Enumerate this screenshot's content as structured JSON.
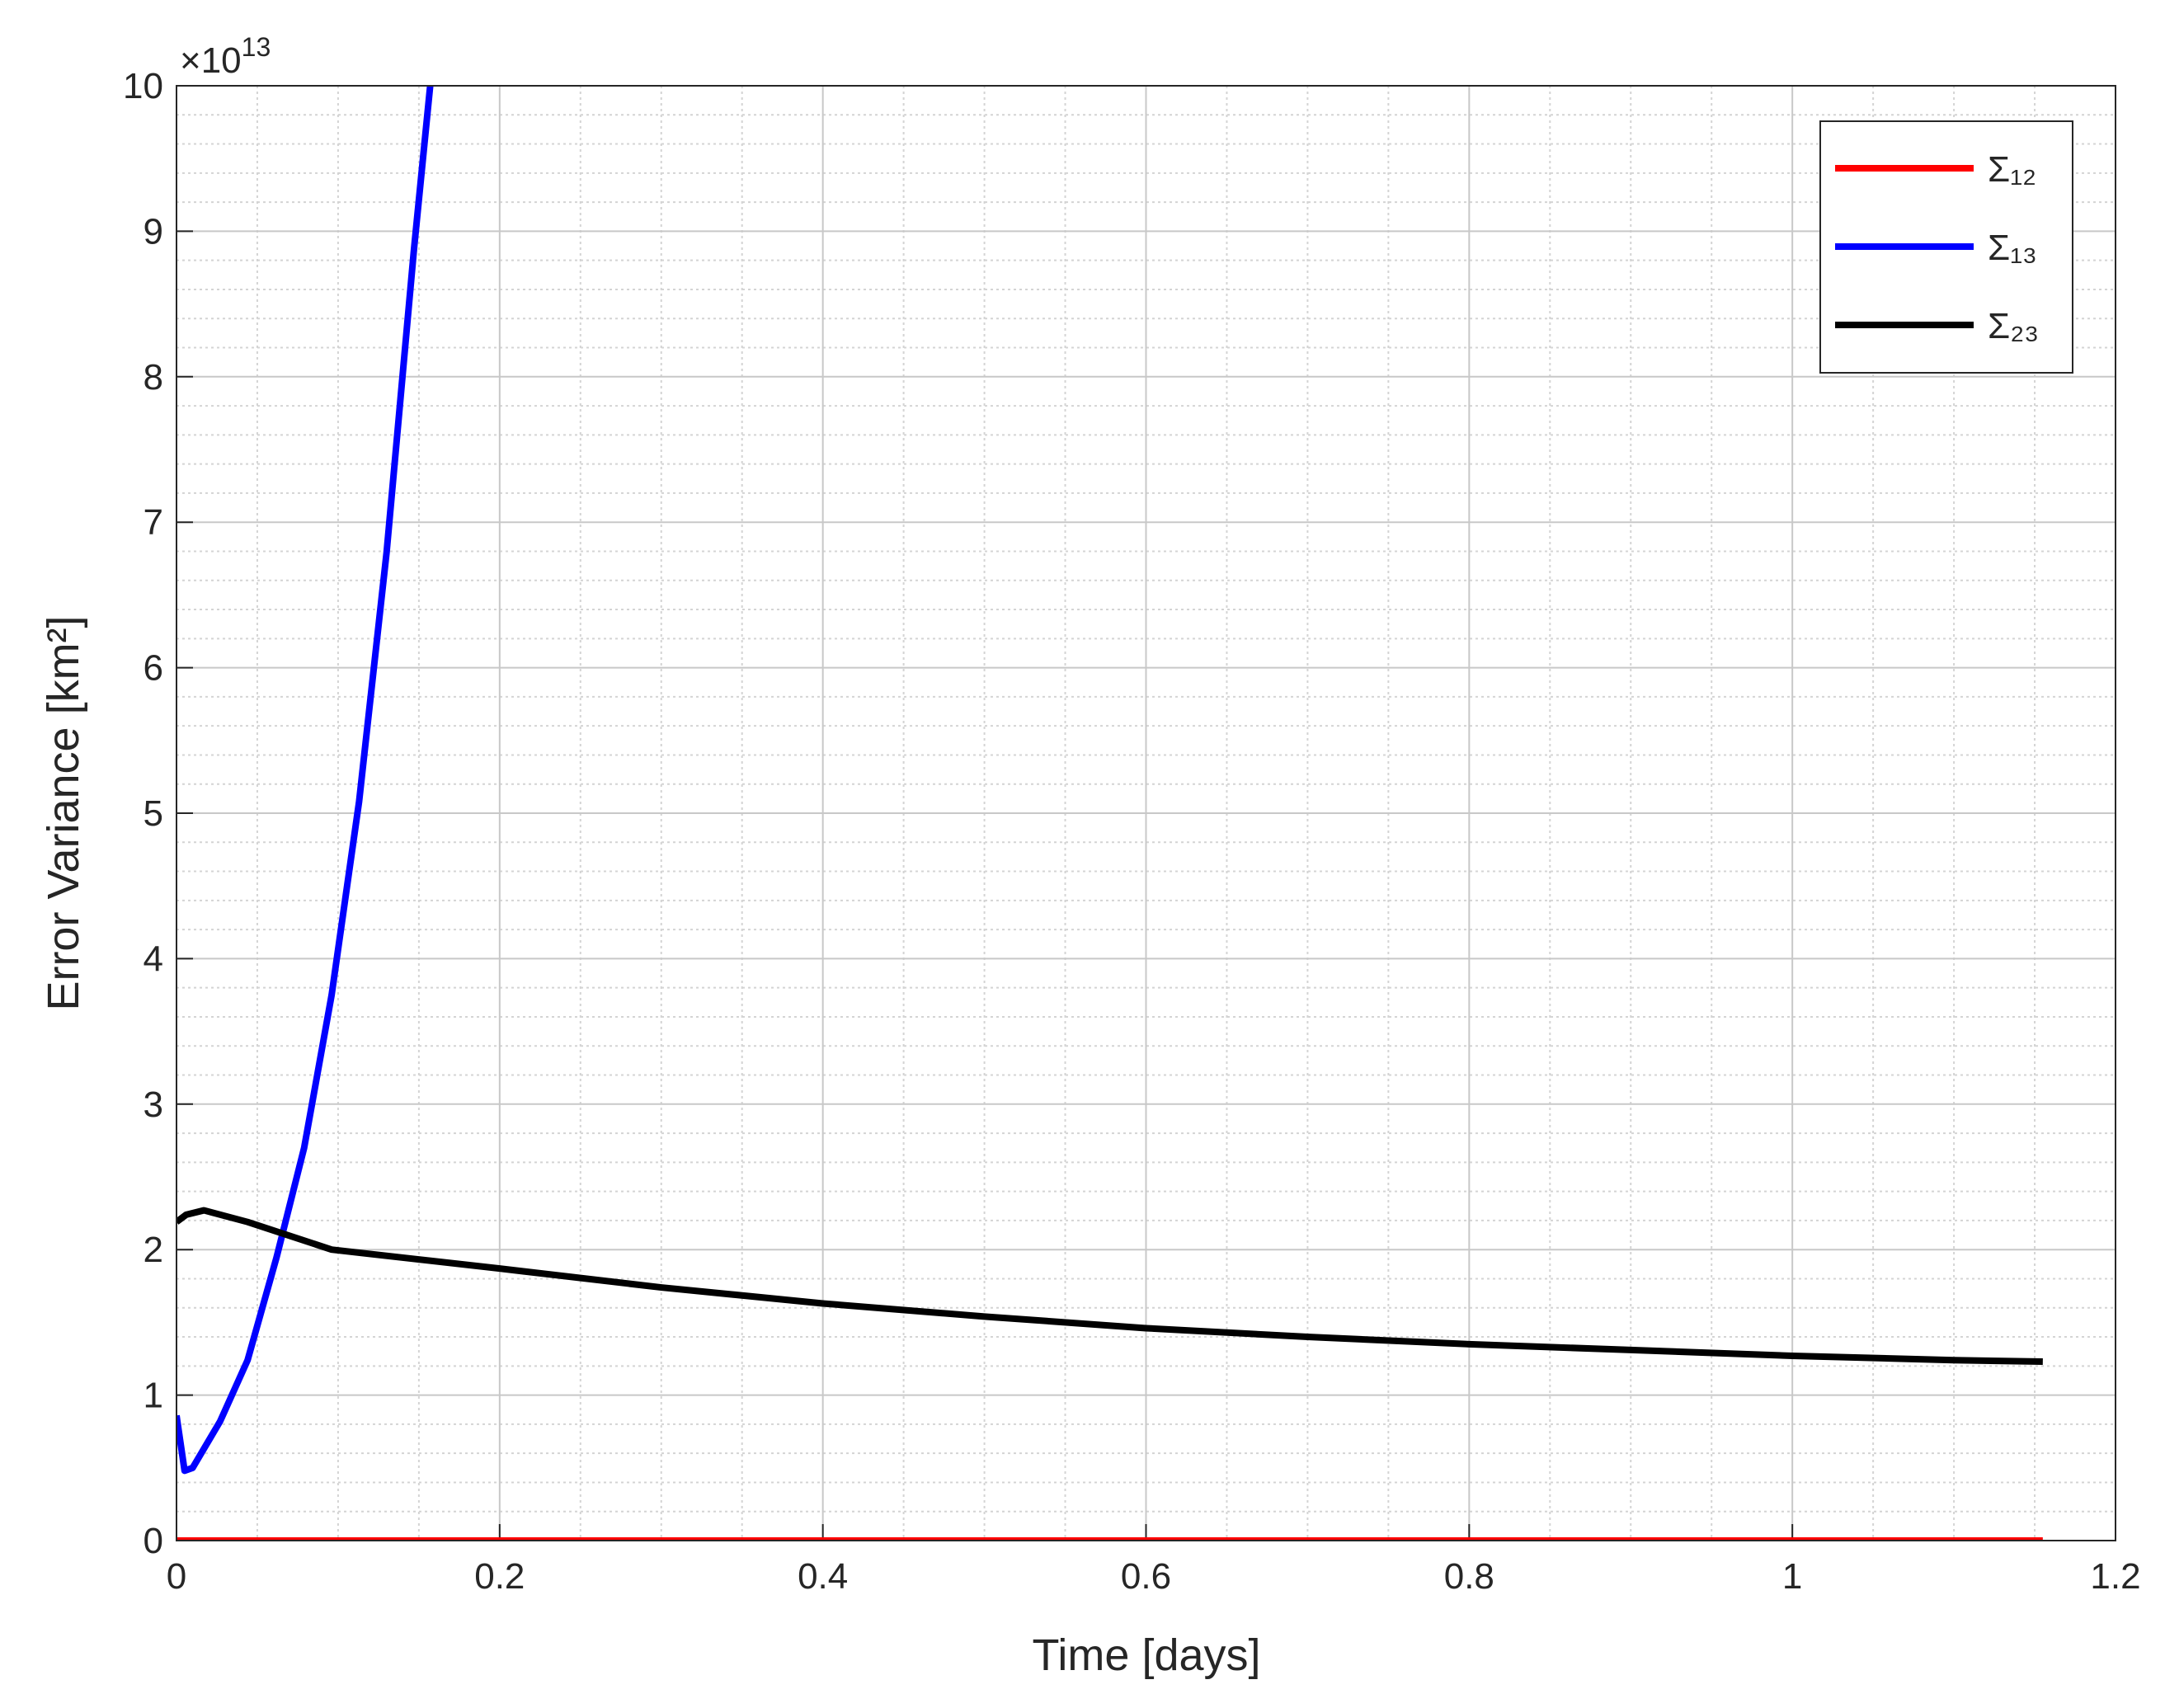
{
  "chart_data": {
    "type": "line",
    "xlabel": "Time [days]",
    "ylabel": "Error Variance [km²]",
    "y_exponent": {
      "base": "×10",
      "power": "13"
    },
    "xlim": [
      0,
      1.2
    ],
    "xticks": [
      0,
      0.2,
      0.4,
      0.6,
      0.8,
      1,
      1.2
    ],
    "ylim": [
      0,
      10
    ],
    "yticks": [
      0,
      1,
      2,
      3,
      4,
      5,
      6,
      7,
      8,
      9,
      10
    ],
    "grid": true,
    "minor_grid": true,
    "legend": "upper right",
    "series": [
      {
        "name": "Σ₁₂",
        "color": "#ff0000",
        "x": [
          0,
          0.2,
          0.4,
          0.6,
          0.8,
          1,
          1.155
        ],
        "values": [
          0,
          0,
          0,
          0,
          0,
          0,
          0
        ]
      },
      {
        "name": "Σ₁₃",
        "color": "#0000ff",
        "x": [
          0,
          0.005,
          0.01,
          0.027,
          0.044,
          0.062,
          0.079,
          0.096,
          0.113,
          0.13,
          0.147,
          0.157
        ],
        "values": [
          0.86,
          0.48,
          0.5,
          0.82,
          1.24,
          1.95,
          2.7,
          3.75,
          5.08,
          6.79,
          8.88,
          10
        ]
      },
      {
        "name": "Σ₂₃",
        "color": "#000000",
        "x": [
          0,
          0.006,
          0.017,
          0.044,
          0.096,
          0.2,
          0.3,
          0.4,
          0.5,
          0.6,
          0.7,
          0.8,
          0.9,
          1,
          1.1,
          1.155
        ],
        "values": [
          2.19,
          2.24,
          2.27,
          2.19,
          2.0,
          1.87,
          1.74,
          1.63,
          1.54,
          1.46,
          1.4,
          1.35,
          1.31,
          1.27,
          1.24,
          1.23
        ]
      }
    ]
  }
}
